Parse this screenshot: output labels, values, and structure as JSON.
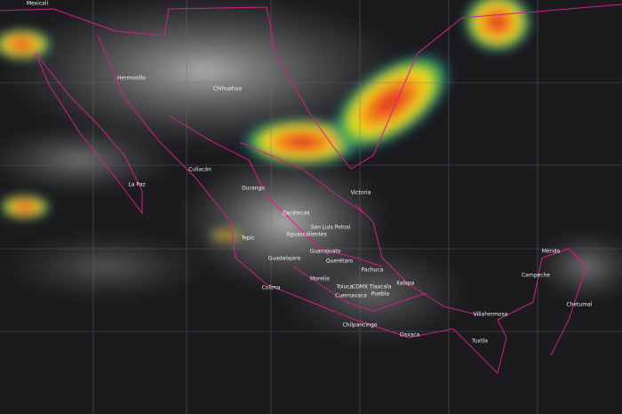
{
  "map": {
    "labels": [
      {
        "text": "Mexicali"
      },
      {
        "text": "Hermosillo"
      },
      {
        "text": "Chihuahua"
      },
      {
        "text": "La Paz"
      },
      {
        "text": "Culiacán"
      },
      {
        "text": "Durango"
      },
      {
        "text": "Victoria"
      },
      {
        "text": "Zacatecas"
      },
      {
        "text": "San Luis Potosí"
      },
      {
        "text": "Aguascalientes"
      },
      {
        "text": "Tepic"
      },
      {
        "text": "Guadalajara"
      },
      {
        "text": "Guanajuato"
      },
      {
        "text": "Querétaro"
      },
      {
        "text": "Pachuca"
      },
      {
        "text": "Morelia"
      },
      {
        "text": "Colima"
      },
      {
        "text": "Toluca"
      },
      {
        "text": "CDMX"
      },
      {
        "text": "Tlaxcala"
      },
      {
        "text": "Xalapa"
      },
      {
        "text": "Cuernavaca"
      },
      {
        "text": "Puebla"
      },
      {
        "text": "Chilpancingo"
      },
      {
        "text": "Oaxaca"
      },
      {
        "text": "Villahermosa"
      },
      {
        "text": "Tuxtla"
      },
      {
        "text": "Campeche"
      },
      {
        "text": "Mérida"
      },
      {
        "text": "Chetumal"
      }
    ]
  }
}
